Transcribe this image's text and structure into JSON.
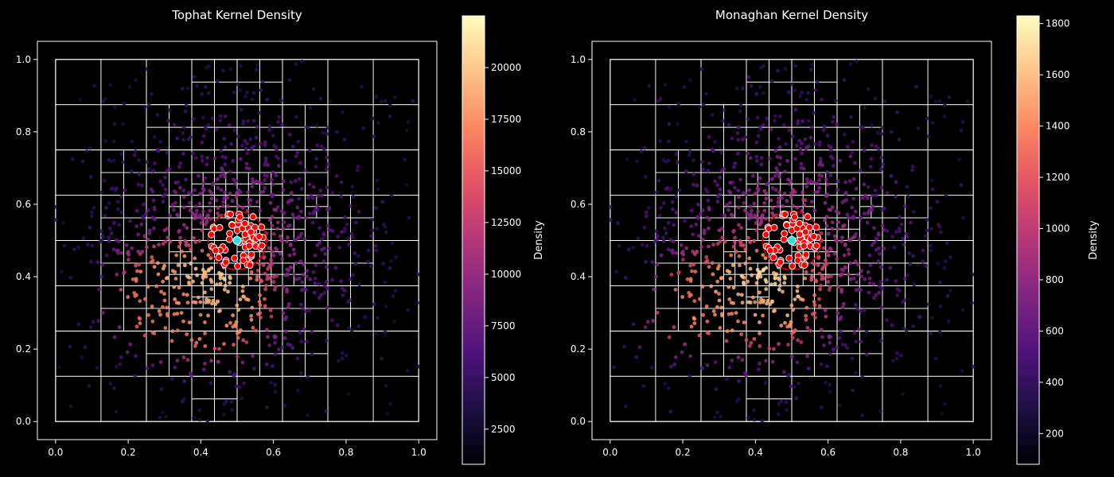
{
  "chart_data": [
    {
      "type": "scatter",
      "title": "Tophat Kernel Density",
      "xlabel": "",
      "ylabel": "",
      "xlim": [
        -0.05,
        1.05
      ],
      "ylim": [
        -0.05,
        1.05
      ],
      "x_ticks": [
        "0.0",
        "0.2",
        "0.4",
        "0.6",
        "0.8",
        "1.0"
      ],
      "y_ticks": [
        "0.0",
        "0.2",
        "0.4",
        "0.6",
        "0.8",
        "1.0"
      ],
      "colormap": "magma",
      "colorbar": {
        "label": "Density",
        "range": [
          800,
          22500
        ],
        "ticks": [
          2500,
          5000,
          7500,
          10000,
          12500,
          15000,
          17500,
          20000
        ],
        "tick_labels": [
          "2500",
          "5000",
          "7500",
          "10000",
          "12500",
          "15000",
          "17500",
          "20000"
        ]
      },
      "query_point": [
        0.5,
        0.5
      ],
      "query_radius": 0.08,
      "hot_spots": [
        [
          0.31,
          0.35
        ],
        [
          0.27,
          0.33
        ],
        [
          0.46,
          0.32
        ],
        [
          0.44,
          0.31
        ]
      ],
      "grid": false
    },
    {
      "type": "scatter",
      "title": "Monaghan Kernel Density",
      "xlabel": "",
      "ylabel": "",
      "xlim": [
        -0.05,
        1.05
      ],
      "ylim": [
        -0.05,
        1.05
      ],
      "x_ticks": [
        "0.0",
        "0.2",
        "0.4",
        "0.6",
        "0.8",
        "1.0"
      ],
      "y_ticks": [
        "0.0",
        "0.2",
        "0.4",
        "0.6",
        "0.8",
        "1.0"
      ],
      "colormap": "magma",
      "colorbar": {
        "label": "Density",
        "range": [
          80,
          1830
        ],
        "ticks": [
          200,
          400,
          600,
          800,
          1000,
          1200,
          1400,
          1600,
          1800
        ],
        "tick_labels": [
          "200",
          "400",
          "600",
          "800",
          "1000",
          "1200",
          "1400",
          "1600",
          "1800"
        ]
      },
      "query_point": [
        0.5,
        0.5
      ],
      "query_radius": 0.08,
      "hot_spots": [
        [
          0.29,
          0.36
        ],
        [
          0.47,
          0.34
        ],
        [
          0.41,
          0.32
        ],
        [
          0.2,
          0.3
        ]
      ],
      "grid": false
    }
  ],
  "colors": {
    "background": "#000000",
    "axes": "#ffffff",
    "neighbor_fill": "#ff0000",
    "neighbor_edge": "#ffffff",
    "query_fill": "#22e5e5",
    "circle": "#cc0000"
  }
}
